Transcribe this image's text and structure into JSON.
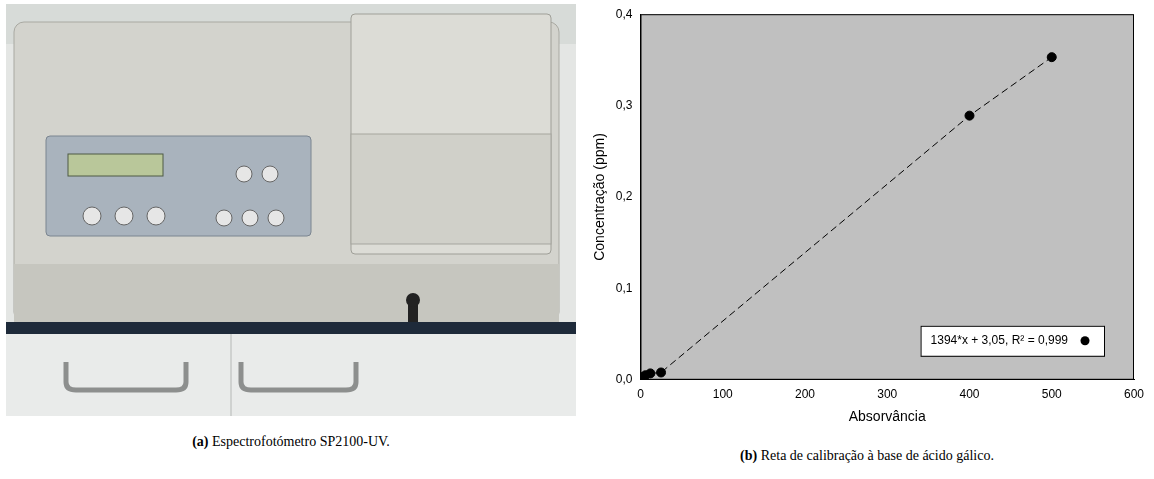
{
  "photo": {
    "caption": "(a) Espectrofotómetro SP2100-UV."
  },
  "chart_data": {
    "type": "scatter",
    "caption": "(b) Reta de calibração à base de ácido gálico.",
    "x_label": "Absorvância",
    "y_label": "Concentração (ppm)",
    "x": [
      1,
      3,
      6,
      12,
      25,
      400,
      500
    ],
    "series": [
      {
        "name": "1394*x + 3,05, R² = 0,999",
        "color": "#000000",
        "marker": "circle",
        "line_style": "dashed",
        "values": [
          0.002,
          0.003,
          0.005,
          0.007,
          0.008,
          0.289,
          0.353
        ]
      }
    ],
    "xlim": [
      0,
      600
    ],
    "xticks": [
      0,
      100,
      200,
      300,
      400,
      500,
      600
    ],
    "ylim": [
      0,
      0.4
    ],
    "yticks": [
      {
        "value": 0,
        "label": "0,0"
      },
      {
        "value": 0.1,
        "label": "0,1"
      },
      {
        "value": 0.2,
        "label": "0,2"
      },
      {
        "value": 0.3,
        "label": "0,3"
      },
      {
        "value": 0.4,
        "label": "0,4"
      }
    ],
    "grid": false,
    "legend": "lower right"
  }
}
